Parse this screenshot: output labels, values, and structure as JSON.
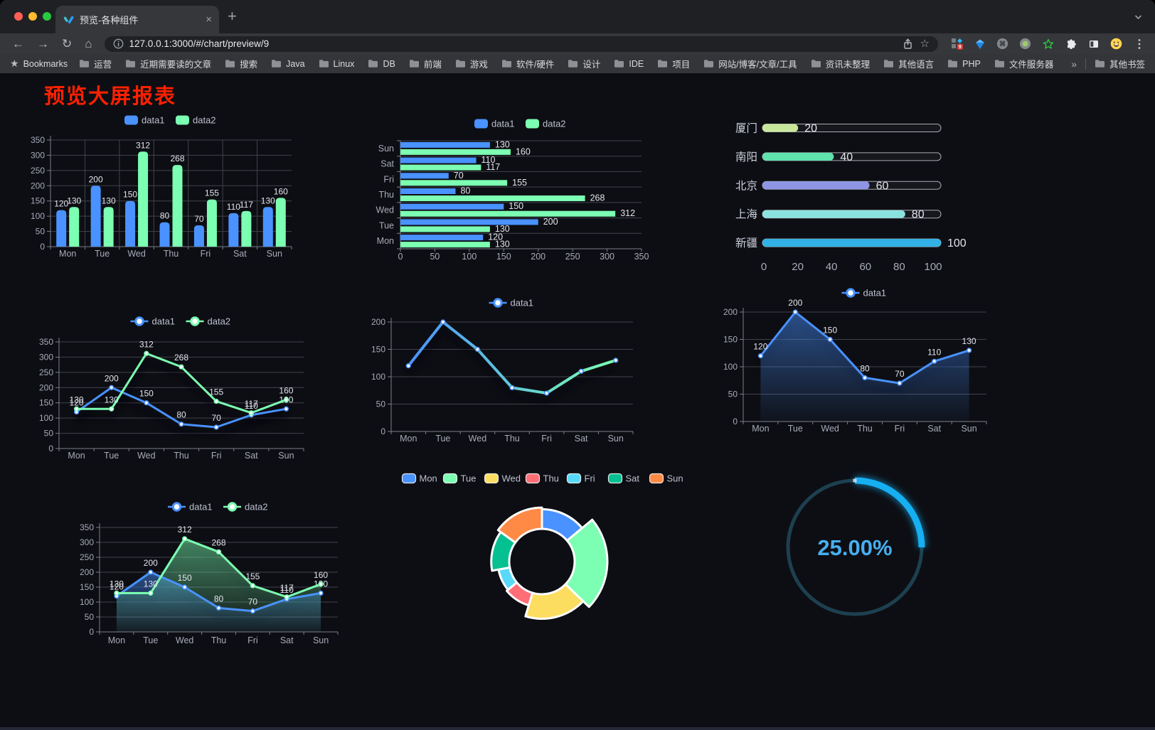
{
  "browser": {
    "traffic_lights": [
      "#ff5f57",
      "#febc2e",
      "#28c840"
    ],
    "tab": {
      "title": "预览-各种组件",
      "close_glyph": "×",
      "new_tab_glyph": "+"
    },
    "url": "127.0.0.1:3000/#/chart/preview/9",
    "extensions_badge": "9",
    "bookmarks_bar": {
      "star_label": "Bookmarks",
      "folders": [
        "运营",
        "近期需要读的文章",
        "搜索",
        "Java",
        "Linux",
        "DB",
        "前端",
        "游戏",
        "软件/硬件",
        "设计",
        "IDE",
        "项目",
        "网站/博客/文章/工具",
        "资讯未整理",
        "其他语言",
        "PHP",
        "文件服务器"
      ],
      "overflow_glyph": "»",
      "other_bookmarks": "其他书签"
    }
  },
  "page": {
    "title": "预览大屏报表",
    "title_color": "#ff2000"
  },
  "chart_data": [
    {
      "name": "grouped-bar",
      "type": "bar",
      "categories": [
        "Mon",
        "Tue",
        "Wed",
        "Thu",
        "Fri",
        "Sat",
        "Sun"
      ],
      "series": [
        {
          "name": "data1",
          "color": "#4992ff",
          "values": [
            120,
            200,
            150,
            80,
            70,
            110,
            130
          ]
        },
        {
          "name": "data2",
          "color": "#7cffb2",
          "values": [
            130,
            130,
            312,
            268,
            155,
            117,
            160
          ]
        }
      ],
      "ylim": [
        0,
        350
      ],
      "yticks": [
        0,
        50,
        100,
        150,
        200,
        250,
        300,
        350
      ],
      "legend_position": "top",
      "value_labels": true,
      "grid": true
    },
    {
      "name": "horizontal-bar",
      "type": "hbar",
      "categories": [
        "Mon",
        "Tue",
        "Wed",
        "Thu",
        "Fri",
        "Sat",
        "Sun"
      ],
      "series": [
        {
          "name": "data1",
          "color": "#4992ff",
          "values": [
            120,
            200,
            150,
            80,
            70,
            110,
            130
          ]
        },
        {
          "name": "data2",
          "color": "#7cffb2",
          "values": [
            130,
            130,
            312,
            268,
            155,
            117,
            160
          ]
        }
      ],
      "xlim": [
        0,
        350
      ],
      "xticks": [
        0,
        50,
        100,
        150,
        200,
        250,
        300,
        350
      ],
      "legend_position": "top",
      "value_labels": true,
      "grid": true
    },
    {
      "name": "city-progress",
      "type": "progress",
      "max": 100,
      "xticks": [
        0,
        20,
        40,
        60,
        80,
        100
      ],
      "rows": [
        {
          "label": "厦门",
          "value": 20,
          "color": "#c9e79c"
        },
        {
          "label": "南阳",
          "value": 40,
          "color": "#5fe2ac"
        },
        {
          "label": "北京",
          "value": 60,
          "color": "#8e95e5"
        },
        {
          "label": "上海",
          "value": 80,
          "color": "#8ae2df"
        },
        {
          "label": "新疆",
          "value": 100,
          "color": "#31b1e5"
        }
      ]
    },
    {
      "name": "two-series-line",
      "type": "line",
      "categories": [
        "Mon",
        "Tue",
        "Wed",
        "Thu",
        "Fri",
        "Sat",
        "Sun"
      ],
      "series": [
        {
          "name": "data1",
          "color": "#4992ff",
          "values": [
            120,
            200,
            150,
            80,
            70,
            110,
            130
          ]
        },
        {
          "name": "data2",
          "color": "#7cffb2",
          "values": [
            130,
            130,
            312,
            268,
            155,
            117,
            160
          ]
        }
      ],
      "ylim": [
        0,
        350
      ],
      "yticks": [
        0,
        50,
        100,
        150,
        200,
        250,
        300,
        350
      ],
      "legend_position": "top",
      "value_labels": true,
      "grid": true
    },
    {
      "name": "gradient-line",
      "type": "line",
      "categories": [
        "Mon",
        "Tue",
        "Wed",
        "Thu",
        "Fri",
        "Sat",
        "Sun"
      ],
      "series": [
        {
          "name": "data1",
          "color": "#4992ff",
          "gradient": [
            "#4992ff",
            "#7cffb2"
          ],
          "values": [
            120,
            200,
            150,
            80,
            70,
            110,
            130
          ]
        }
      ],
      "ylim": [
        0,
        200
      ],
      "yticks": [
        0,
        50,
        100,
        150,
        200
      ],
      "legend_position": "top",
      "value_labels": false,
      "grid": true
    },
    {
      "name": "area-line",
      "type": "line",
      "categories": [
        "Mon",
        "Tue",
        "Wed",
        "Thu",
        "Fri",
        "Sat",
        "Sun"
      ],
      "series": [
        {
          "name": "data1",
          "color": "#4992ff",
          "area": true,
          "values": [
            120,
            200,
            150,
            80,
            70,
            110,
            130
          ]
        }
      ],
      "ylim": [
        0,
        200
      ],
      "yticks": [
        0,
        50,
        100,
        150,
        200
      ],
      "legend_position": "top",
      "value_labels": true,
      "grid": true
    },
    {
      "name": "two-series-area-line",
      "type": "line",
      "categories": [
        "Mon",
        "Tue",
        "Wed",
        "Thu",
        "Fri",
        "Sat",
        "Sun"
      ],
      "series": [
        {
          "name": "data1",
          "color": "#4992ff",
          "area": true,
          "values": [
            120,
            200,
            150,
            80,
            70,
            110,
            130
          ]
        },
        {
          "name": "data2",
          "color": "#7cffb2",
          "area": true,
          "values": [
            130,
            130,
            312,
            268,
            155,
            117,
            160
          ]
        }
      ],
      "ylim": [
        0,
        350
      ],
      "yticks": [
        0,
        50,
        100,
        150,
        200,
        250,
        300,
        350
      ],
      "legend_position": "top",
      "value_labels": true,
      "grid": true
    },
    {
      "name": "rose-donut",
      "type": "pie",
      "rose": true,
      "inner_radius": 46,
      "legend_position": "top",
      "items": [
        {
          "name": "Mon",
          "value": 120,
          "color": "#4992ff"
        },
        {
          "name": "Tue",
          "value": 200,
          "color": "#7cffb2"
        },
        {
          "name": "Wed",
          "value": 150,
          "color": "#fddd60"
        },
        {
          "name": "Thu",
          "value": 80,
          "color": "#ff6e76"
        },
        {
          "name": "Fri",
          "value": 70,
          "color": "#58d9f9"
        },
        {
          "name": "Sat",
          "value": 110,
          "color": "#05c091"
        },
        {
          "name": "Sun",
          "value": 130,
          "color": "#ff8a45"
        }
      ]
    },
    {
      "name": "progress-gauge",
      "type": "gauge",
      "value": 25,
      "label": "25.00%",
      "color": "#16aff2",
      "track_color": "#1d4050",
      "text_color": "#47aeef"
    }
  ]
}
